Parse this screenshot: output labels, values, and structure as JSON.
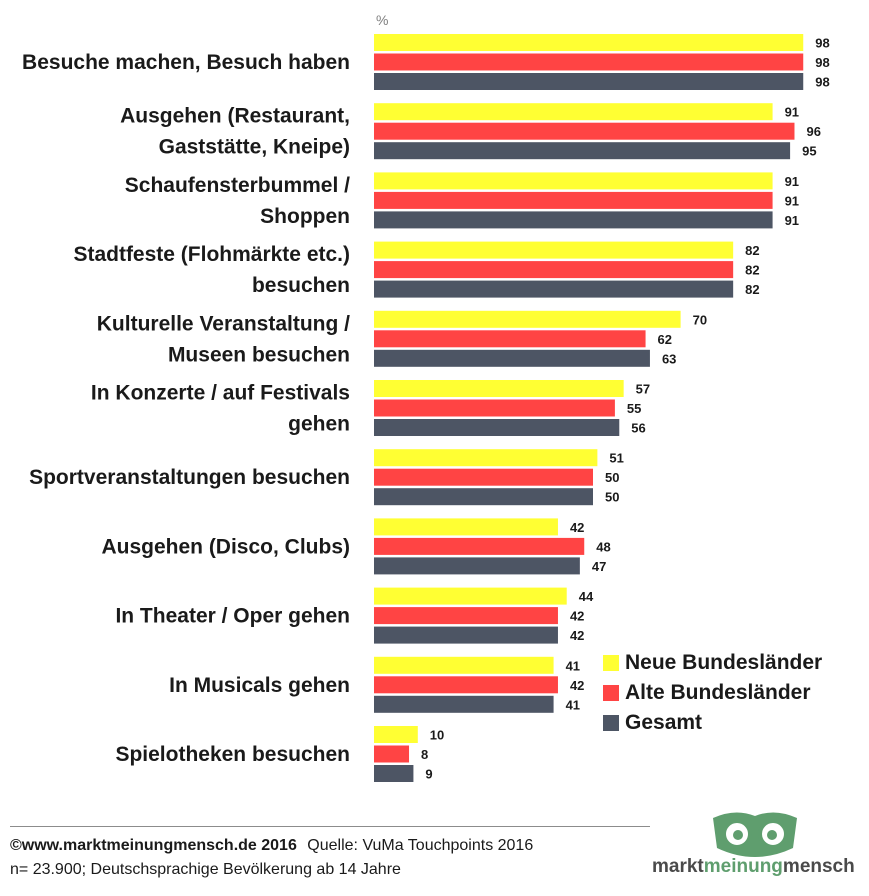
{
  "chart_data": {
    "type": "bar",
    "orientation": "horizontal",
    "unit_label": "%",
    "categories": [
      [
        "Besuche machen, Besuch haben"
      ],
      [
        "Ausgehen (Restaurant,",
        "Gaststätte, Kneipe)"
      ],
      [
        "Schaufensterbummel /",
        "Shoppen"
      ],
      [
        "Stadtfeste (Flohmärkte etc.)",
        "besuchen"
      ],
      [
        "Kulturelle Veranstaltung /",
        "Museen besuchen"
      ],
      [
        "In Konzerte / auf Festivals",
        "gehen"
      ],
      [
        "Sportveranstaltungen besuchen"
      ],
      [
        "Ausgehen (Disco, Clubs)"
      ],
      [
        "In Theater / Oper gehen"
      ],
      [
        "In Musicals gehen"
      ],
      [
        "Spielotheken besuchen"
      ]
    ],
    "series": [
      {
        "name": "Neue Bundesländer",
        "color": "#ffff33",
        "values": [
          98,
          91,
          91,
          82,
          70,
          57,
          51,
          42,
          44,
          41,
          10
        ]
      },
      {
        "name": "Alte Bundesländer",
        "color": "#ff4444",
        "values": [
          98,
          96,
          91,
          82,
          62,
          55,
          50,
          48,
          42,
          42,
          8
        ]
      },
      {
        "name": "Gesamt",
        "color": "#4d5564",
        "values": [
          98,
          95,
          91,
          82,
          63,
          56,
          50,
          47,
          42,
          41,
          9
        ]
      }
    ],
    "xlim": [
      0,
      100
    ],
    "legend_position": "bottom-right",
    "grid": false
  },
  "footer": {
    "copyright": "©www.marktmeinungmensch.de 2016",
    "source": "Quelle: VuMa Touchpoints 2016",
    "note": "n= 23.900; Deutschsprachige Bevölkerung ab 14 Jahre"
  },
  "logo": {
    "text_left": "markt",
    "text_mid": "meinung",
    "text_right": "mensch",
    "color": "#5f9e6e"
  }
}
